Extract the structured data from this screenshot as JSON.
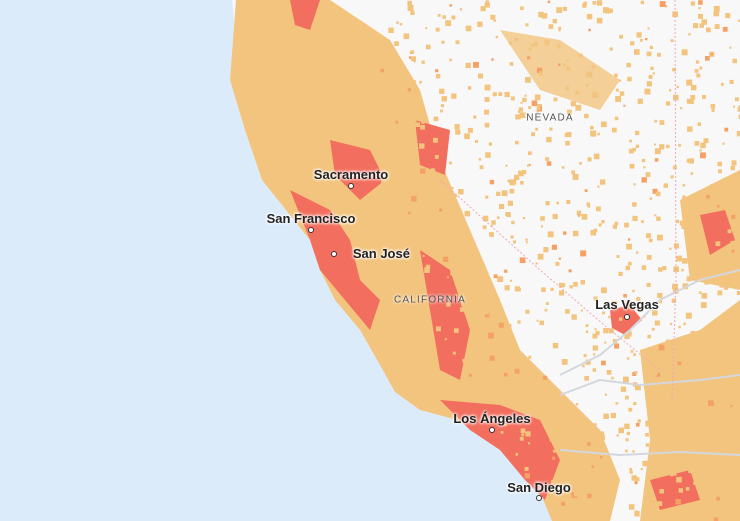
{
  "map": {
    "colors": {
      "ocean": "#dcebfa",
      "land": "#f8f8f8",
      "low": "#f2c47e",
      "medium": "#f5a064",
      "high": "#f26e5e",
      "roads": "#d0d4da",
      "borders": "#f4a6b6"
    },
    "cities": [
      {
        "name": "Sacramento"
      },
      {
        "name": "San Francisco"
      },
      {
        "name": "San José"
      },
      {
        "name": "Las Vegas"
      },
      {
        "name": "Los Ángeles"
      },
      {
        "name": "San Diego"
      }
    ],
    "states": [
      {
        "name": "NEVADA"
      },
      {
        "name": "CALIFORNIA"
      }
    ]
  }
}
